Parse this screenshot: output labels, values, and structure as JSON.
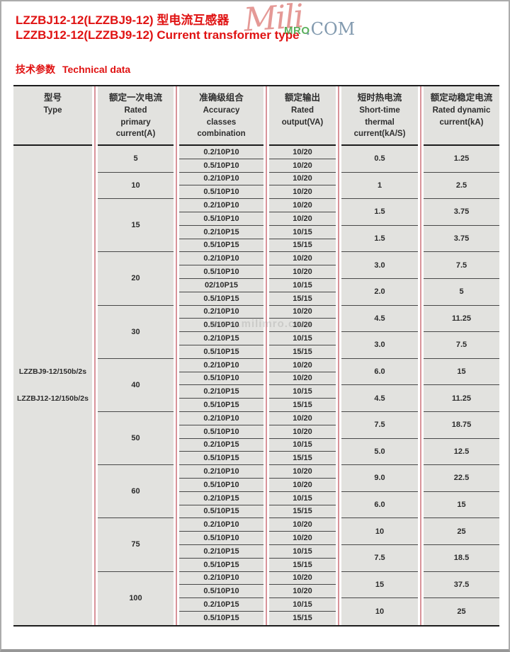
{
  "page": {
    "title_cn": "LZZBJ12-12(LZZBJ9-12) 型电流互感器",
    "title_en": "LZZBJ12-12(LZZBJ9-12) Current transformer type",
    "section_cn": "技术参数",
    "section_en": "Technical data"
  },
  "watermark": {
    "script_text": "Mili",
    "mro_text": "MRO",
    "com_text": ".COM",
    "center_text": "www.milimro.com"
  },
  "colors": {
    "title_red": "#e01212",
    "cell_background": "#e2e2df",
    "divider_red": "#d8939a",
    "line_dark": "#1c1c1c",
    "watermark_green": "#48a84a",
    "watermark_blue": "#748fa6"
  },
  "table": {
    "headers": [
      {
        "cn": "型号",
        "en": [
          "Type"
        ]
      },
      {
        "cn": "额定一次电流",
        "en": [
          "Rated",
          "primary",
          "current(A)"
        ]
      },
      {
        "cn": "准确级组合",
        "en": [
          "Accuracy",
          "classes",
          "combination"
        ]
      },
      {
        "cn": "额定输出",
        "en": [
          "Rated",
          "output(VA)"
        ]
      },
      {
        "cn": "短时热电流",
        "en": [
          "Short-time",
          "thermal",
          "current(kA/S)"
        ]
      },
      {
        "cn": "额定动稳定电流",
        "en": [
          "Rated dynamic",
          "current(kA)"
        ]
      }
    ],
    "type_models": [
      "LZZBJ9-12/150b/2s",
      "LZZBJ12-12/150b/2s"
    ],
    "groups": [
      {
        "primary": "5",
        "rows": [
          {
            "accuracy": "0.2/10P10",
            "output": "10/20"
          },
          {
            "accuracy": "0.5/10P10",
            "output": "10/20"
          }
        ],
        "pairs": [
          {
            "thermal": "0.5",
            "dynamic": "1.25"
          }
        ]
      },
      {
        "primary": "10",
        "rows": [
          {
            "accuracy": "0.2/10P10",
            "output": "10/20"
          },
          {
            "accuracy": "0.5/10P10",
            "output": "10/20"
          }
        ],
        "pairs": [
          {
            "thermal": "1",
            "dynamic": "2.5"
          }
        ]
      },
      {
        "primary": "15",
        "rows": [
          {
            "accuracy": "0.2/10P10",
            "output": "10/20"
          },
          {
            "accuracy": "0.5/10P10",
            "output": "10/20"
          },
          {
            "accuracy": "0.2/10P15",
            "output": "10/15"
          },
          {
            "accuracy": "0.5/10P15",
            "output": "15/15"
          }
        ],
        "pairs": [
          {
            "thermal": "1.5",
            "dynamic": "3.75"
          },
          {
            "thermal": "1.5",
            "dynamic": "3.75"
          }
        ]
      },
      {
        "primary": "20",
        "rows": [
          {
            "accuracy": "0.2/10P10",
            "output": "10/20"
          },
          {
            "accuracy": "0.5/10P10",
            "output": "10/20"
          },
          {
            "accuracy": "02/10P15",
            "output": "10/15"
          },
          {
            "accuracy": "0.5/10P15",
            "output": "15/15"
          }
        ],
        "pairs": [
          {
            "thermal": "3.0",
            "dynamic": "7.5"
          },
          {
            "thermal": "2.0",
            "dynamic": "5"
          }
        ]
      },
      {
        "primary": "30",
        "rows": [
          {
            "accuracy": "0.2/10P10",
            "output": "10/20"
          },
          {
            "accuracy": "0.5/10P10",
            "output": "10/20"
          },
          {
            "accuracy": "0.2/10P15",
            "output": "10/15"
          },
          {
            "accuracy": "0.5/10P15",
            "output": "15/15"
          }
        ],
        "pairs": [
          {
            "thermal": "4.5",
            "dynamic": "11.25"
          },
          {
            "thermal": "3.0",
            "dynamic": "7.5"
          }
        ]
      },
      {
        "primary": "40",
        "rows": [
          {
            "accuracy": "0.2/10P10",
            "output": "10/20"
          },
          {
            "accuracy": "0.5/10P10",
            "output": "10/20"
          },
          {
            "accuracy": "0.2/10P15",
            "output": "10/15"
          },
          {
            "accuracy": "0.5/10P15",
            "output": "15/15"
          }
        ],
        "pairs": [
          {
            "thermal": "6.0",
            "dynamic": "15"
          },
          {
            "thermal": "4.5",
            "dynamic": "11.25"
          }
        ]
      },
      {
        "primary": "50",
        "rows": [
          {
            "accuracy": "0.2/10P10",
            "output": "10/20"
          },
          {
            "accuracy": "0.5/10P10",
            "output": "10/20"
          },
          {
            "accuracy": "0.2/10P15",
            "output": "10/15"
          },
          {
            "accuracy": "0.5/10P15",
            "output": "15/15"
          }
        ],
        "pairs": [
          {
            "thermal": "7.5",
            "dynamic": "18.75"
          },
          {
            "thermal": "5.0",
            "dynamic": "12.5"
          }
        ]
      },
      {
        "primary": "60",
        "rows": [
          {
            "accuracy": "0.2/10P10",
            "output": "10/20"
          },
          {
            "accuracy": "0.5/10P10",
            "output": "10/20"
          },
          {
            "accuracy": "0.2/10P15",
            "output": "10/15"
          },
          {
            "accuracy": "0.5/10P15",
            "output": "15/15"
          }
        ],
        "pairs": [
          {
            "thermal": "9.0",
            "dynamic": "22.5"
          },
          {
            "thermal": "6.0",
            "dynamic": "15"
          }
        ]
      },
      {
        "primary": "75",
        "rows": [
          {
            "accuracy": "0.2/10P10",
            "output": "10/20"
          },
          {
            "accuracy": "0.5/10P10",
            "output": "10/20"
          },
          {
            "accuracy": "0.2/10P15",
            "output": "10/15"
          },
          {
            "accuracy": "0.5/10P15",
            "output": "15/15"
          }
        ],
        "pairs": [
          {
            "thermal": "10",
            "dynamic": "25"
          },
          {
            "thermal": "7.5",
            "dynamic": "18.5"
          }
        ]
      },
      {
        "primary": "100",
        "rows": [
          {
            "accuracy": "0.2/10P10",
            "output": "10/20"
          },
          {
            "accuracy": "0.5/10P10",
            "output": "10/20"
          },
          {
            "accuracy": "0.2/10P15",
            "output": "10/15"
          },
          {
            "accuracy": "0.5/10P15",
            "output": "15/15"
          }
        ],
        "pairs": [
          {
            "thermal": "15",
            "dynamic": "37.5"
          },
          {
            "thermal": "10",
            "dynamic": "25"
          }
        ]
      }
    ]
  }
}
